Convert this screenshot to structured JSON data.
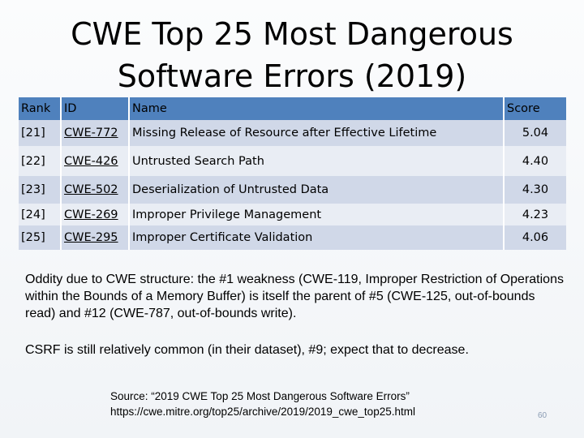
{
  "slide": {
    "title_line1": "CWE Top 25 Most Dangerous",
    "title_line2": "Software Errors (2019)",
    "page_number": "60"
  },
  "table": {
    "headers": {
      "rank": "Rank",
      "id": "ID",
      "name": "Name",
      "score": "Score"
    },
    "rows": [
      {
        "rank": "[21]",
        "id": "CWE-772",
        "name": "Missing Release of Resource after Effective Lifetime",
        "score": "5.04"
      },
      {
        "rank": "[22]",
        "id": "CWE-426",
        "name": "Untrusted Search Path",
        "score": "4.40"
      },
      {
        "rank": "[23]",
        "id": "CWE-502",
        "name": "Deserialization of Untrusted Data",
        "score": "4.30"
      },
      {
        "rank": "[24]",
        "id": "CWE-269",
        "name": "Improper Privilege Management",
        "score": "4.23"
      },
      {
        "rank": "[25]",
        "id": "CWE-295",
        "name": "Improper Certificate Validation",
        "score": "4.06"
      }
    ]
  },
  "body": {
    "paragraph1": "Oddity due to CWE structure: the #1 weakness (CWE-119, Improper Restriction of Operations within the Bounds of a Memory Buffer) is itself the parent of #5 (CWE-125, out-of-bounds read) and #12 (CWE-787, out-of-bounds write).",
    "paragraph2": "CSRF is still relatively common (in their dataset), #9; expect that to decrease."
  },
  "source": {
    "line1": "Source: “2019 CWE Top 25 Most Dangerous Software Errors”",
    "line2": "https://cwe.mitre.org/top25/archive/2019/2019_cwe_top25.html"
  },
  "colors": {
    "header_bg": "#4f81bd",
    "row_dark": "#d0d8e8",
    "row_light": "#e9edf4"
  }
}
